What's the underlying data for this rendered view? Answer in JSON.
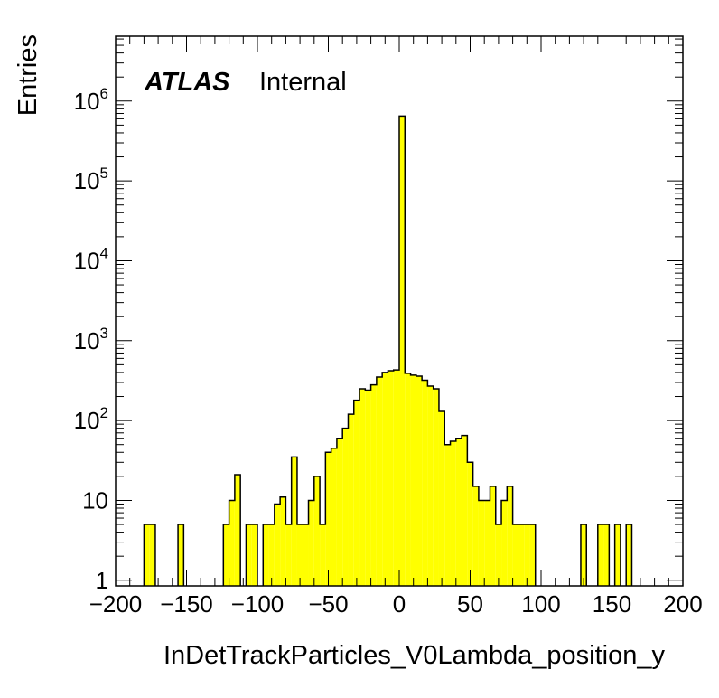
{
  "chart_data": {
    "type": "bar",
    "xlabel": "InDetTrackParticles_V0Lambda_position_y",
    "ylabel": "Entries",
    "xlim": [
      -200,
      200
    ],
    "ylim": [
      0.85,
      6500000
    ],
    "log_y": true,
    "bin_width": 4,
    "x_ticks": [
      "−200",
      "−150",
      "−100",
      "−50",
      "0",
      "50",
      "100",
      "150",
      "200"
    ],
    "y_ticks": [
      {
        "base": "1",
        "exp": ""
      },
      {
        "base": "10",
        "exp": ""
      },
      {
        "base": "10",
        "exp": "2"
      },
      {
        "base": "10",
        "exp": "3"
      },
      {
        "base": "10",
        "exp": "4"
      },
      {
        "base": "10",
        "exp": "5"
      },
      {
        "base": "10",
        "exp": "6"
      }
    ],
    "bins_x_low": [
      -180,
      -176,
      -156,
      -124,
      -120,
      -116,
      -108,
      -104,
      -96,
      -92,
      -88,
      -84,
      -80,
      -76,
      -72,
      -68,
      -64,
      -60,
      -56,
      -52,
      -48,
      -44,
      -40,
      -36,
      -32,
      -28,
      -24,
      -20,
      -16,
      -12,
      -8,
      -4,
      0,
      4,
      8,
      12,
      16,
      20,
      24,
      28,
      32,
      36,
      40,
      44,
      48,
      52,
      56,
      60,
      64,
      68,
      72,
      76,
      80,
      84,
      88,
      92,
      128,
      140,
      144,
      152,
      160
    ],
    "values": [
      5,
      5,
      5,
      5,
      10,
      21,
      5,
      5,
      5,
      5,
      9,
      11,
      5,
      35,
      5,
      5,
      10,
      20,
      5,
      40,
      45,
      60,
      80,
      120,
      180,
      250,
      240,
      280,
      350,
      400,
      420,
      430,
      650000,
      390,
      370,
      360,
      320,
      270,
      250,
      130,
      50,
      55,
      60,
      65,
      30,
      15,
      10,
      10,
      15,
      5,
      10,
      15,
      5,
      5,
      5,
      5,
      5,
      5,
      5,
      5,
      5
    ],
    "bar_color": "#ffff00",
    "edge_color": "#000000",
    "atlas_label": "ATLAS",
    "atlas_sublabel": "Internal",
    "legend": "none"
  }
}
